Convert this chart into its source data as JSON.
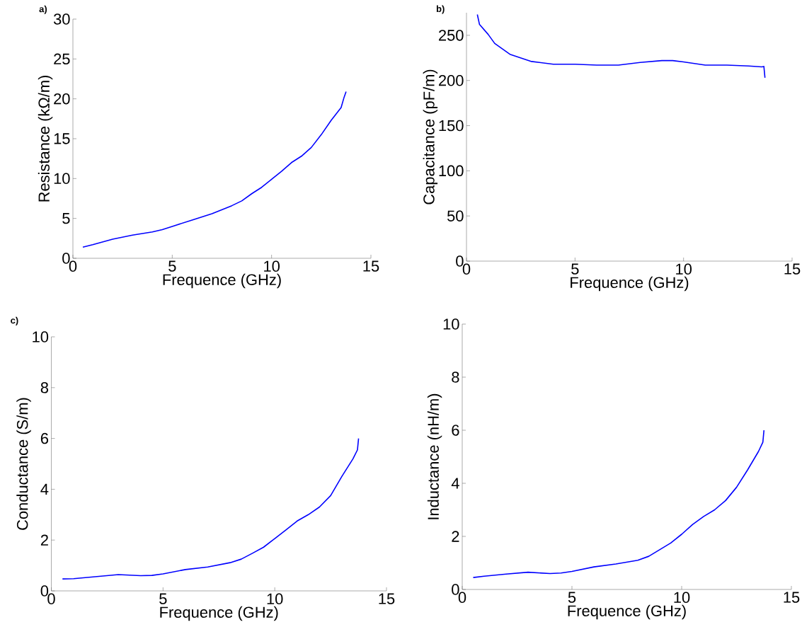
{
  "chart_data": [
    {
      "type": "line",
      "title": "a)",
      "xlabel": "Frequence (GHz)",
      "ylabel": "Resistance (kΩ/m)",
      "xlim": [
        0,
        15
      ],
      "ylim": [
        0,
        30
      ],
      "xticks": [
        0,
        5,
        10,
        15
      ],
      "yticks": [
        0,
        5,
        10,
        15,
        20,
        25,
        30
      ],
      "color": "#0000ff",
      "x": [
        0.5,
        1,
        2,
        3,
        4,
        4.5,
        5,
        6,
        7,
        8,
        8.5,
        9,
        9.5,
        10,
        10.5,
        11,
        11.5,
        12,
        12.5,
        13,
        13.5,
        13.65,
        13.75
      ],
      "values": [
        1.4,
        1.7,
        2.4,
        2.9,
        3.3,
        3.6,
        4.0,
        4.8,
        5.6,
        6.6,
        7.2,
        8.1,
        8.9,
        9.9,
        10.9,
        12.0,
        12.8,
        13.9,
        15.5,
        17.3,
        18.9,
        20.2,
        20.9
      ]
    },
    {
      "type": "line",
      "title": "b)",
      "xlabel": "Frequence (GHz)",
      "ylabel": "Capacitance (pF/m)",
      "xlim": [
        0,
        15
      ],
      "ylim": [
        0,
        275
      ],
      "xticks": [
        0,
        5,
        10,
        15
      ],
      "yticks": [
        0,
        50,
        100,
        150,
        200,
        250
      ],
      "color": "#0000ff",
      "x": [
        0.5,
        0.6,
        1,
        1.3,
        2,
        3,
        4,
        5,
        6,
        7,
        8,
        9,
        9.5,
        10,
        11,
        12,
        13,
        13.6,
        13.7,
        13.75
      ],
      "values": [
        273,
        262,
        251,
        241,
        229,
        221,
        218,
        218,
        217,
        217,
        220,
        222,
        222,
        220.5,
        217,
        217,
        216,
        215,
        215.5,
        203
      ]
    },
    {
      "type": "line",
      "title": "c)",
      "xlabel": "Frequence (GHz)",
      "ylabel": "Conductance (S/m)",
      "xlim": [
        0,
        15
      ],
      "ylim": [
        0,
        10
      ],
      "xticks": [
        0,
        5,
        10,
        15
      ],
      "yticks": [
        0,
        2,
        4,
        6,
        8,
        10
      ],
      "color": "#0000ff",
      "x": [
        0.5,
        1,
        2,
        3,
        4,
        4.5,
        5,
        6,
        7,
        8,
        8.5,
        9,
        9.5,
        10,
        10.5,
        11,
        11.5,
        12,
        12.5,
        13,
        13.5,
        13.7,
        13.75
      ],
      "values": [
        0.47,
        0.48,
        0.56,
        0.64,
        0.6,
        0.61,
        0.67,
        0.84,
        0.94,
        1.11,
        1.25,
        1.48,
        1.72,
        2.06,
        2.4,
        2.75,
        3.0,
        3.3,
        3.75,
        4.5,
        5.2,
        5.55,
        6.0
      ]
    },
    {
      "type": "line",
      "xlabel": "Frequence (GHz)",
      "ylabel": "Inductance (nH/m)",
      "xlim": [
        0,
        15
      ],
      "ylim": [
        0,
        10
      ],
      "xticks": [
        0,
        5,
        10,
        15
      ],
      "yticks": [
        0,
        2,
        4,
        6,
        8,
        10
      ],
      "color": "#0000ff",
      "x": [
        0.5,
        1,
        2,
        3,
        4,
        4.5,
        5,
        6,
        7,
        8,
        8.5,
        9,
        9.5,
        10,
        10.5,
        11,
        11.5,
        12,
        12.5,
        13,
        13.5,
        13.7,
        13.75
      ],
      "values": [
        0.45,
        0.5,
        0.58,
        0.65,
        0.6,
        0.62,
        0.68,
        0.85,
        0.96,
        1.1,
        1.25,
        1.5,
        1.75,
        2.08,
        2.45,
        2.75,
        3.0,
        3.35,
        3.85,
        4.5,
        5.2,
        5.55,
        6.0
      ]
    }
  ]
}
